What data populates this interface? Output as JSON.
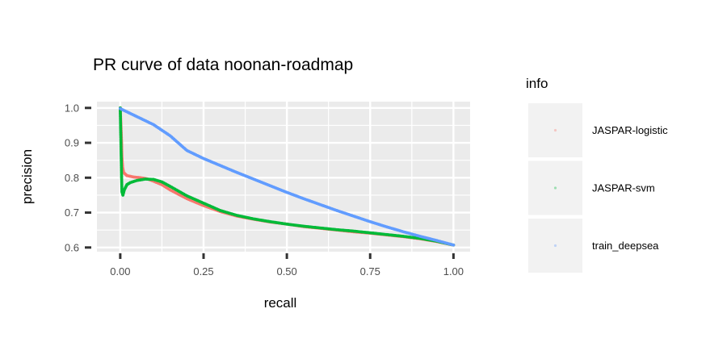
{
  "chart_data": {
    "type": "scatter",
    "title": "PR curve of data noonan-roadmap",
    "xlabel": "recall",
    "ylabel": "precision",
    "xlim": [
      -0.07,
      1.05
    ],
    "ylim": [
      0.588,
      1.018
    ],
    "xticks": [
      0.0,
      0.25,
      0.5,
      0.75,
      1.0
    ],
    "xtick_labels": [
      "0.00",
      "0.25",
      "0.50",
      "0.75",
      "1.00"
    ],
    "yticks": [
      0.6,
      0.7,
      0.8,
      0.9,
      1.0
    ],
    "ytick_labels": [
      "0.6",
      "0.7",
      "0.8",
      "0.9",
      "1.0"
    ],
    "grid": true,
    "legend": {
      "title": "info",
      "placement": "right"
    },
    "series": [
      {
        "name": "JASPAR-logistic",
        "color": "#F8766D",
        "points": [
          [
            0.0,
            1.0
          ],
          [
            0.002,
            0.95
          ],
          [
            0.004,
            0.9
          ],
          [
            0.005,
            0.86
          ],
          [
            0.007,
            0.83
          ],
          [
            0.01,
            0.815
          ],
          [
            0.02,
            0.806
          ],
          [
            0.04,
            0.802
          ],
          [
            0.06,
            0.8
          ],
          [
            0.08,
            0.797
          ],
          [
            0.1,
            0.79
          ],
          [
            0.125,
            0.78
          ],
          [
            0.15,
            0.765
          ],
          [
            0.2,
            0.74
          ],
          [
            0.25,
            0.72
          ],
          [
            0.3,
            0.703
          ],
          [
            0.35,
            0.69
          ],
          [
            0.4,
            0.681
          ],
          [
            0.45,
            0.673
          ],
          [
            0.5,
            0.667
          ],
          [
            0.55,
            0.66
          ],
          [
            0.6,
            0.655
          ],
          [
            0.65,
            0.65
          ],
          [
            0.7,
            0.645
          ],
          [
            0.75,
            0.641
          ],
          [
            0.8,
            0.636
          ],
          [
            0.85,
            0.631
          ],
          [
            0.9,
            0.625
          ],
          [
            0.95,
            0.617
          ],
          [
            1.0,
            0.607
          ]
        ]
      },
      {
        "name": "JASPAR-svm",
        "color": "#00BA38",
        "points": [
          [
            0.0,
            1.0
          ],
          [
            0.001,
            0.95
          ],
          [
            0.002,
            0.9
          ],
          [
            0.003,
            0.85
          ],
          [
            0.004,
            0.8
          ],
          [
            0.005,
            0.76
          ],
          [
            0.008,
            0.75
          ],
          [
            0.012,
            0.765
          ],
          [
            0.02,
            0.78
          ],
          [
            0.03,
            0.786
          ],
          [
            0.05,
            0.792
          ],
          [
            0.075,
            0.796
          ],
          [
            0.1,
            0.795
          ],
          [
            0.125,
            0.788
          ],
          [
            0.15,
            0.775
          ],
          [
            0.2,
            0.748
          ],
          [
            0.25,
            0.727
          ],
          [
            0.3,
            0.706
          ],
          [
            0.35,
            0.692
          ],
          [
            0.4,
            0.682
          ],
          [
            0.45,
            0.674
          ],
          [
            0.5,
            0.667
          ],
          [
            0.55,
            0.661
          ],
          [
            0.6,
            0.656
          ],
          [
            0.65,
            0.651
          ],
          [
            0.7,
            0.647
          ],
          [
            0.75,
            0.642
          ],
          [
            0.8,
            0.637
          ],
          [
            0.85,
            0.632
          ],
          [
            0.9,
            0.626
          ],
          [
            0.95,
            0.618
          ],
          [
            1.0,
            0.607
          ]
        ]
      },
      {
        "name": "train_deepsea",
        "color": "#619CFF",
        "points": [
          [
            0.0,
            0.998
          ],
          [
            0.05,
            0.975
          ],
          [
            0.1,
            0.952
          ],
          [
            0.15,
            0.92
          ],
          [
            0.2,
            0.878
          ],
          [
            0.25,
            0.855
          ],
          [
            0.3,
            0.835
          ],
          [
            0.35,
            0.815
          ],
          [
            0.4,
            0.796
          ],
          [
            0.45,
            0.777
          ],
          [
            0.5,
            0.758
          ],
          [
            0.55,
            0.74
          ],
          [
            0.6,
            0.723
          ],
          [
            0.65,
            0.706
          ],
          [
            0.7,
            0.69
          ],
          [
            0.75,
            0.674
          ],
          [
            0.8,
            0.659
          ],
          [
            0.85,
            0.645
          ],
          [
            0.9,
            0.632
          ],
          [
            0.95,
            0.62
          ],
          [
            1.0,
            0.607
          ]
        ]
      }
    ]
  }
}
